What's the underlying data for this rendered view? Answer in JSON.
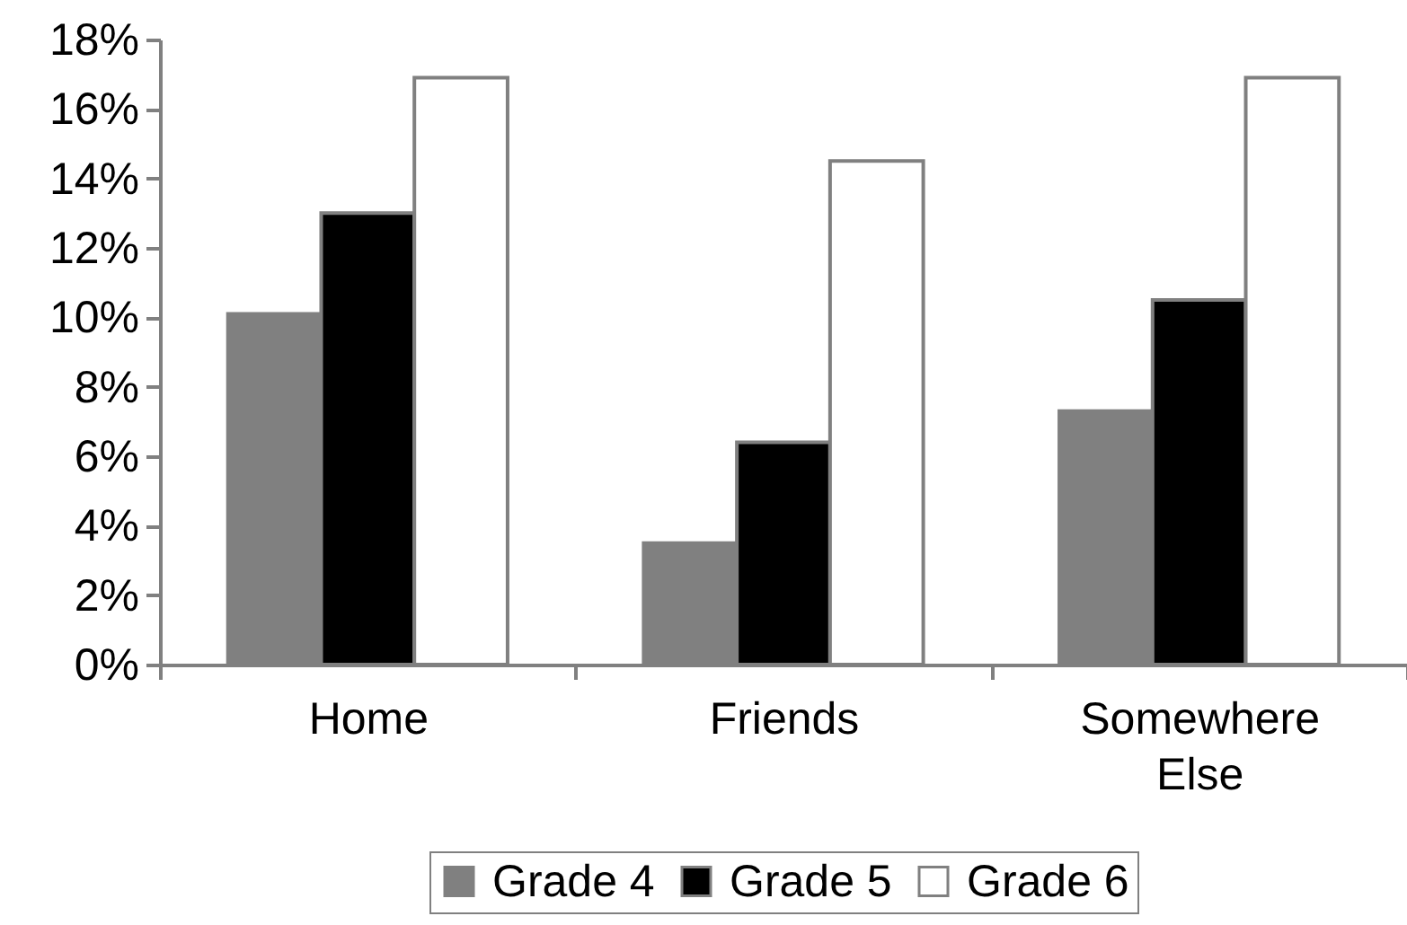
{
  "chart_data": {
    "type": "bar",
    "categories": [
      "Home",
      "Friends",
      "Somewhere Else"
    ],
    "series": [
      {
        "name": "Grade 4",
        "color": "#808080",
        "values": [
          10.1,
          3.5,
          7.3
        ]
      },
      {
        "name": "Grade 5",
        "color": "#000000",
        "values": [
          13.0,
          6.4,
          10.5
        ]
      },
      {
        "name": "Grade 6",
        "color": "#ffffff",
        "values": [
          16.9,
          14.5,
          16.9
        ]
      }
    ],
    "ylim": [
      0,
      18
    ],
    "yticks": [
      {
        "value": 0,
        "label": "0%"
      },
      {
        "value": 2,
        "label": "2%"
      },
      {
        "value": 4,
        "label": "4%"
      },
      {
        "value": 6,
        "label": "6%"
      },
      {
        "value": 8,
        "label": "8%"
      },
      {
        "value": 10,
        "label": "10%"
      },
      {
        "value": 12,
        "label": "12%"
      },
      {
        "value": 14,
        "label": "14%"
      },
      {
        "value": 16,
        "label": "16%"
      },
      {
        "value": 18,
        "label": "18%"
      }
    ],
    "grid": false,
    "legend": "bottom"
  }
}
